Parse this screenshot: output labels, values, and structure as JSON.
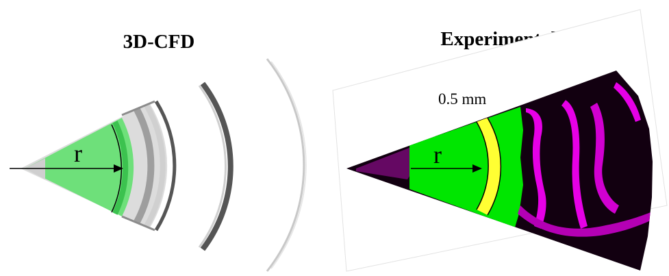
{
  "panels": [
    {
      "title": "3D-CFD",
      "radius_label": "r"
    },
    {
      "title": "Experimental",
      "radius_label": "r",
      "scale_label": "0.5 mm"
    }
  ],
  "colors": {
    "spray_green": "#00e600",
    "cfd_green": "#6ee07a",
    "yellow_band": "#ffff33",
    "magenta": "#e600e6",
    "background_dark": "#120010"
  }
}
